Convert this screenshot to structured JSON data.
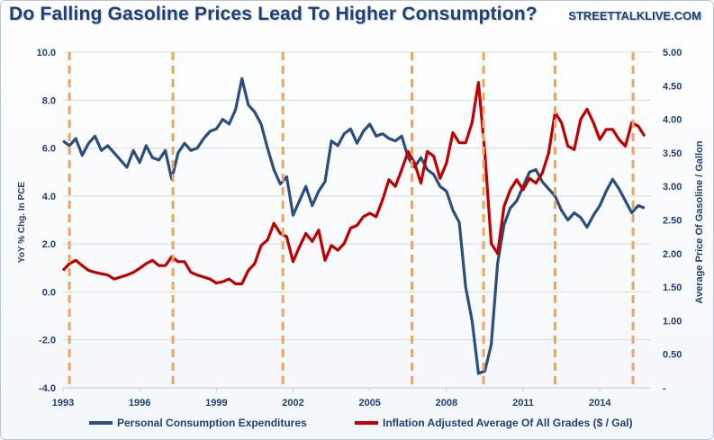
{
  "header": {
    "title": "Do Falling Gasoline Prices Lead To Higher Consumption?",
    "brand": "STREETTALKLIVE.COM"
  },
  "colors": {
    "pce": "#2b4e7e",
    "gas": "#c00000",
    "markers": "#f0a35e",
    "grid": "#d9d9d9",
    "text": "#1f3f77"
  },
  "chart_data": {
    "type": "line",
    "title": "Do Falling Gasoline Prices Lead To Higher Consumption?",
    "x_ticks": [
      "1993",
      "1996",
      "1999",
      "2002",
      "2005",
      "2008",
      "2011",
      "2014"
    ],
    "xlim": [
      1993.0,
      2016.0
    ],
    "ylabel_left": "YoY % Chg. In PCE",
    "ylabel_right": "Average Price Of Gasoline / Gallon",
    "ylim_left": [
      -4.0,
      10.0
    ],
    "y_ticks_left": [
      "-4.0",
      "-2.0",
      "0.0",
      "2.0",
      "4.0",
      "6.0",
      "8.0",
      "10.0"
    ],
    "ylim_right": [
      0.0,
      5.0
    ],
    "y_ticks_right": [
      "-",
      "0.50",
      "1.00",
      "1.50",
      "2.00",
      "2.50",
      "3.00",
      "3.50",
      "4.00",
      "4.50",
      "5.00"
    ],
    "grid": "horizontal",
    "legend_position": "bottom",
    "vertical_markers": [
      1993.25,
      1997.3,
      2001.6,
      2006.65,
      2009.45,
      2012.25,
      2015.3
    ],
    "series": [
      {
        "name": "Personal Consumption Expenditures",
        "axis": "left",
        "x": [
          1993.0,
          1993.25,
          1993.5,
          1993.75,
          1994.0,
          1994.25,
          1994.5,
          1994.75,
          1995.0,
          1995.25,
          1995.5,
          1995.75,
          1996.0,
          1996.25,
          1996.5,
          1996.75,
          1997.0,
          1997.25,
          1997.5,
          1997.75,
          1998.0,
          1998.25,
          1998.5,
          1998.75,
          1999.0,
          1999.25,
          1999.5,
          1999.75,
          2000.0,
          2000.25,
          2000.5,
          2000.75,
          2001.0,
          2001.25,
          2001.5,
          2001.75,
          2002.0,
          2002.25,
          2002.5,
          2002.75,
          2003.0,
          2003.25,
          2003.5,
          2003.75,
          2004.0,
          2004.25,
          2004.5,
          2004.75,
          2005.0,
          2005.25,
          2005.5,
          2005.75,
          2006.0,
          2006.25,
          2006.5,
          2006.75,
          2007.0,
          2007.25,
          2007.5,
          2007.75,
          2008.0,
          2008.25,
          2008.5,
          2008.75,
          2009.0,
          2009.25,
          2009.5,
          2009.75,
          2010.0,
          2010.25,
          2010.5,
          2010.75,
          2011.0,
          2011.25,
          2011.5,
          2011.75,
          2012.0,
          2012.25,
          2012.5,
          2012.75,
          2013.0,
          2013.25,
          2013.5,
          2013.75,
          2014.0,
          2014.25,
          2014.5,
          2014.75,
          2015.0,
          2015.25,
          2015.5,
          2015.75
        ],
        "values": [
          6.3,
          6.1,
          6.4,
          5.7,
          6.2,
          6.5,
          5.9,
          6.1,
          5.8,
          5.5,
          5.2,
          5.9,
          5.4,
          6.1,
          5.6,
          5.5,
          5.9,
          4.7,
          5.8,
          6.2,
          5.9,
          6.0,
          6.4,
          6.7,
          6.8,
          7.2,
          7.0,
          7.6,
          8.9,
          7.8,
          7.5,
          7.0,
          6.0,
          5.1,
          4.5,
          4.8,
          3.2,
          3.8,
          4.4,
          3.6,
          4.2,
          4.6,
          6.3,
          6.1,
          6.6,
          6.8,
          6.2,
          6.7,
          7.0,
          6.5,
          6.6,
          6.4,
          6.3,
          6.5,
          5.6,
          5.2,
          5.6,
          5.1,
          4.9,
          4.4,
          4.2,
          3.4,
          2.9,
          0.2,
          -1.2,
          -3.4,
          -3.3,
          -2.2,
          1.2,
          2.8,
          3.5,
          3.8,
          4.4,
          5.0,
          5.1,
          4.6,
          4.3,
          4.0,
          3.4,
          3.0,
          3.3,
          3.1,
          2.7,
          3.2,
          3.6,
          4.2,
          4.7,
          4.3,
          3.8,
          3.3,
          3.6,
          3.5
        ]
      },
      {
        "name": "Inflation Adjusted Average Of All Grades ($ / Gal)",
        "axis": "right",
        "x": [
          1993.0,
          1993.25,
          1993.5,
          1993.75,
          1994.0,
          1994.25,
          1994.5,
          1994.75,
          1995.0,
          1995.25,
          1995.5,
          1995.75,
          1996.0,
          1996.25,
          1996.5,
          1996.75,
          1997.0,
          1997.25,
          1997.5,
          1997.75,
          1998.0,
          1998.25,
          1998.5,
          1998.75,
          1999.0,
          1999.25,
          1999.5,
          1999.75,
          2000.0,
          2000.25,
          2000.5,
          2000.75,
          2001.0,
          2001.25,
          2001.5,
          2001.75,
          2002.0,
          2002.25,
          2002.5,
          2002.75,
          2003.0,
          2003.25,
          2003.5,
          2003.75,
          2004.0,
          2004.25,
          2004.5,
          2004.75,
          2005.0,
          2005.25,
          2005.5,
          2005.75,
          2006.0,
          2006.25,
          2006.5,
          2006.75,
          2007.0,
          2007.25,
          2007.5,
          2007.75,
          2008.0,
          2008.25,
          2008.5,
          2008.75,
          2009.0,
          2009.25,
          2009.5,
          2009.75,
          2010.0,
          2010.25,
          2010.5,
          2010.75,
          2011.0,
          2011.25,
          2011.5,
          2011.75,
          2012.0,
          2012.25,
          2012.5,
          2012.75,
          2013.0,
          2013.25,
          2013.5,
          2013.75,
          2014.0,
          2014.25,
          2014.5,
          2014.75,
          2015.0,
          2015.25,
          2015.5,
          2015.75
        ],
        "values": [
          1.75,
          1.85,
          1.9,
          1.82,
          1.75,
          1.72,
          1.7,
          1.68,
          1.62,
          1.65,
          1.68,
          1.72,
          1.78,
          1.85,
          1.9,
          1.82,
          1.82,
          1.95,
          1.88,
          1.88,
          1.72,
          1.68,
          1.65,
          1.62,
          1.56,
          1.58,
          1.62,
          1.55,
          1.55,
          1.75,
          1.85,
          2.12,
          2.2,
          2.45,
          2.3,
          2.25,
          1.88,
          2.1,
          2.3,
          2.18,
          2.35,
          1.9,
          2.12,
          2.05,
          2.15,
          2.38,
          2.42,
          2.55,
          2.6,
          2.55,
          2.8,
          3.1,
          3.0,
          3.25,
          3.52,
          3.35,
          3.05,
          3.52,
          3.45,
          3.12,
          3.35,
          3.8,
          3.65,
          3.65,
          3.95,
          4.55,
          3.5,
          2.15,
          2.0,
          2.7,
          2.95,
          3.1,
          2.95,
          3.12,
          3.05,
          3.2,
          3.5,
          4.1,
          3.95,
          3.6,
          3.55,
          4.0,
          4.15,
          3.95,
          3.7,
          3.85,
          3.85,
          3.7,
          3.6,
          3.95,
          3.9,
          3.75
        ]
      }
    ]
  }
}
